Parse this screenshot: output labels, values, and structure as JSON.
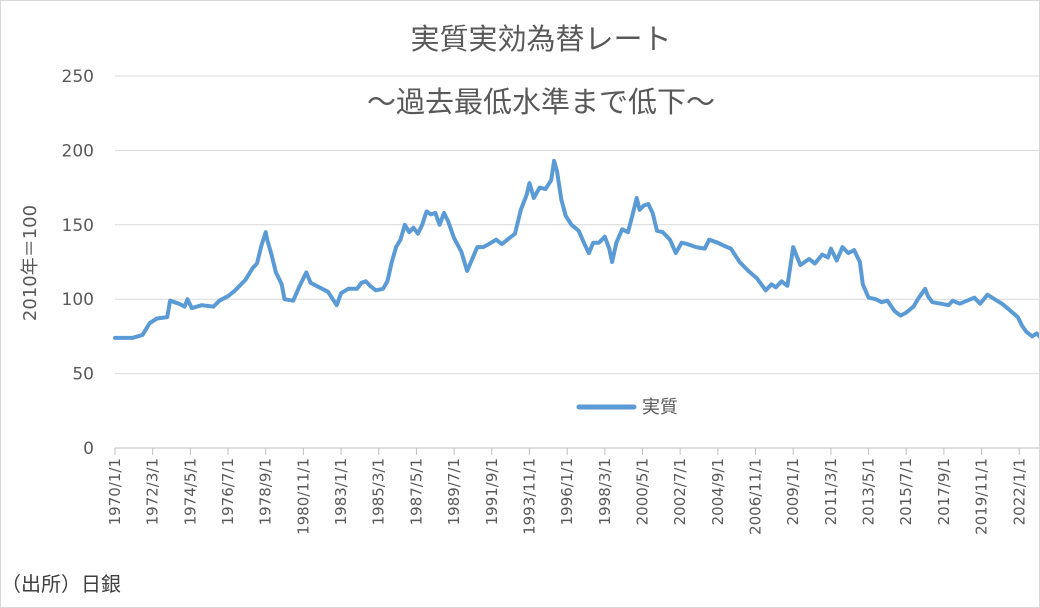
{
  "chart_data": {
    "type": "line",
    "title": "実質実効為替レート",
    "subtitle": "～過去最低水準まで低下～",
    "ylabel": "2010年＝100",
    "xlabel": "",
    "ylim": [
      0,
      250
    ],
    "yticks": [
      0,
      50,
      100,
      150,
      200,
      250
    ],
    "grid": true,
    "legend_position": "bottom-center",
    "x_tick_labels": [
      "1970/1/1",
      "1972/3/1",
      "1974/5/1",
      "1976/7/1",
      "1978/9/1",
      "1980/11/1",
      "1983/1/1",
      "1985/3/1",
      "1987/5/1",
      "1989/7/1",
      "1991/9/1",
      "1993/11/1",
      "1996/1/1",
      "1998/3/1",
      "2000/5/1",
      "2002/7/1",
      "2004/9/1",
      "2006/11/1",
      "2009/1/1",
      "2011/3/1",
      "2013/5/1",
      "2015/7/1",
      "2017/9/1",
      "2019/11/1",
      "2022/1/1"
    ],
    "x_range": [
      "1970-01",
      "2023-04"
    ],
    "series": [
      {
        "name": "実質",
        "color": "#5b9bd5",
        "points": [
          [
            "1970-01",
            74
          ],
          [
            "1971-01",
            74
          ],
          [
            "1971-08",
            76
          ],
          [
            "1972-01",
            84
          ],
          [
            "1972-06",
            87
          ],
          [
            "1973-01",
            88
          ],
          [
            "1973-03",
            99
          ],
          [
            "1973-09",
            97
          ],
          [
            "1974-01",
            95
          ],
          [
            "1974-03",
            100
          ],
          [
            "1974-06",
            94
          ],
          [
            "1975-01",
            96
          ],
          [
            "1975-09",
            95
          ],
          [
            "1976-01",
            99
          ],
          [
            "1976-07",
            102
          ],
          [
            "1976-12",
            106
          ],
          [
            "1977-03",
            109
          ],
          [
            "1977-07",
            113
          ],
          [
            "1977-12",
            121
          ],
          [
            "1978-03",
            124
          ],
          [
            "1978-06",
            136
          ],
          [
            "1978-09",
            145
          ],
          [
            "1978-10",
            140
          ],
          [
            "1979-01",
            130
          ],
          [
            "1979-04",
            118
          ],
          [
            "1979-08",
            110
          ],
          [
            "1979-10",
            100
          ],
          [
            "1980-04",
            99
          ],
          [
            "1980-08",
            108
          ],
          [
            "1981-01",
            118
          ],
          [
            "1981-04",
            111
          ],
          [
            "1981-10",
            108
          ],
          [
            "1982-04",
            105
          ],
          [
            "1982-10",
            96
          ],
          [
            "1983-01",
            104
          ],
          [
            "1983-06",
            107
          ],
          [
            "1983-12",
            107
          ],
          [
            "1984-03",
            111
          ],
          [
            "1984-06",
            112
          ],
          [
            "1984-09",
            109
          ],
          [
            "1985-01",
            106
          ],
          [
            "1985-06",
            107
          ],
          [
            "1985-09",
            112
          ],
          [
            "1985-12",
            125
          ],
          [
            "1986-03",
            135
          ],
          [
            "1986-06",
            140
          ],
          [
            "1986-09",
            150
          ],
          [
            "1986-12",
            145
          ],
          [
            "1987-03",
            148
          ],
          [
            "1987-06",
            144
          ],
          [
            "1987-09",
            150
          ],
          [
            "1987-12",
            159
          ],
          [
            "1988-03",
            157
          ],
          [
            "1988-06",
            158
          ],
          [
            "1988-09",
            150
          ],
          [
            "1988-12",
            158
          ],
          [
            "1989-03",
            152
          ],
          [
            "1989-07",
            141
          ],
          [
            "1989-12",
            132
          ],
          [
            "1990-04",
            119
          ],
          [
            "1990-08",
            128
          ],
          [
            "1990-11",
            135
          ],
          [
            "1991-03",
            135
          ],
          [
            "1991-07",
            137
          ],
          [
            "1991-12",
            140
          ],
          [
            "1992-04",
            137
          ],
          [
            "1992-09",
            141
          ],
          [
            "1993-01",
            144
          ],
          [
            "1993-05",
            160
          ],
          [
            "1993-09",
            170
          ],
          [
            "1993-11",
            178
          ],
          [
            "1994-02",
            168
          ],
          [
            "1994-06",
            175
          ],
          [
            "1994-10",
            174
          ],
          [
            "1995-02",
            180
          ],
          [
            "1995-04",
            193
          ],
          [
            "1995-06",
            186
          ],
          [
            "1995-09",
            167
          ],
          [
            "1995-12",
            156
          ],
          [
            "1996-04",
            150
          ],
          [
            "1996-09",
            146
          ],
          [
            "1997-01",
            137
          ],
          [
            "1997-04",
            131
          ],
          [
            "1997-07",
            138
          ],
          [
            "1997-11",
            138
          ],
          [
            "1998-03",
            142
          ],
          [
            "1998-06",
            134
          ],
          [
            "1998-08",
            125
          ],
          [
            "1998-11",
            138
          ],
          [
            "1999-03",
            147
          ],
          [
            "1999-07",
            145
          ],
          [
            "1999-11",
            160
          ],
          [
            "2000-01",
            168
          ],
          [
            "2000-03",
            160
          ],
          [
            "2000-06",
            163
          ],
          [
            "2000-09",
            164
          ],
          [
            "2000-12",
            158
          ],
          [
            "2001-03",
            146
          ],
          [
            "2001-07",
            145
          ],
          [
            "2001-12",
            140
          ],
          [
            "2002-04",
            131
          ],
          [
            "2002-08",
            138
          ],
          [
            "2002-12",
            137
          ],
          [
            "2003-06",
            135
          ],
          [
            "2003-12",
            134
          ],
          [
            "2004-03",
            140
          ],
          [
            "2004-09",
            138
          ],
          [
            "2005-01",
            136
          ],
          [
            "2005-06",
            134
          ],
          [
            "2005-12",
            125
          ],
          [
            "2006-06",
            119
          ],
          [
            "2006-12",
            114
          ],
          [
            "2007-06",
            106
          ],
          [
            "2007-10",
            110
          ],
          [
            "2008-01",
            108
          ],
          [
            "2008-05",
            112
          ],
          [
            "2008-09",
            109
          ],
          [
            "2009-01",
            135
          ],
          [
            "2009-03",
            130
          ],
          [
            "2009-06",
            123
          ],
          [
            "2009-12",
            127
          ],
          [
            "2010-04",
            124
          ],
          [
            "2010-09",
            130
          ],
          [
            "2011-01",
            128
          ],
          [
            "2011-03",
            134
          ],
          [
            "2011-07",
            126
          ],
          [
            "2011-11",
            135
          ],
          [
            "2012-03",
            131
          ],
          [
            "2012-07",
            133
          ],
          [
            "2012-11",
            125
          ],
          [
            "2013-01",
            110
          ],
          [
            "2013-05",
            101
          ],
          [
            "2013-10",
            100
          ],
          [
            "2014-02",
            98
          ],
          [
            "2014-06",
            99
          ],
          [
            "2014-11",
            92
          ],
          [
            "2015-03",
            89
          ],
          [
            "2015-07",
            91
          ],
          [
            "2015-12",
            95
          ],
          [
            "2016-03",
            100
          ],
          [
            "2016-08",
            107
          ],
          [
            "2016-10",
            102
          ],
          [
            "2017-01",
            98
          ],
          [
            "2017-07",
            97
          ],
          [
            "2017-12",
            96
          ],
          [
            "2018-03",
            99
          ],
          [
            "2018-08",
            97
          ],
          [
            "2019-01",
            99
          ],
          [
            "2019-06",
            101
          ],
          [
            "2019-10",
            97
          ],
          [
            "2020-03",
            103
          ],
          [
            "2020-08",
            100
          ],
          [
            "2021-01",
            97
          ],
          [
            "2021-06",
            93
          ],
          [
            "2021-12",
            88
          ],
          [
            "2022-03",
            82
          ],
          [
            "2022-06",
            78
          ],
          [
            "2022-10",
            75
          ],
          [
            "2023-01",
            77
          ],
          [
            "2023-04",
            74
          ]
        ]
      }
    ]
  },
  "source_note": "（出所）日銀"
}
